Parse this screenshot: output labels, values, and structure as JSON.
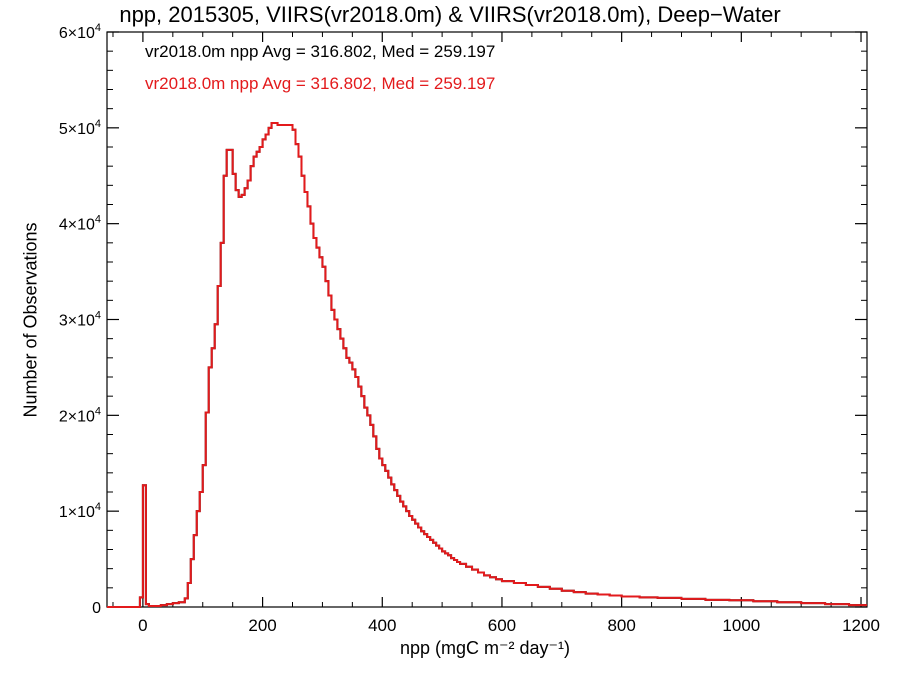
{
  "chart_data": {
    "type": "histogram-step",
    "title": "npp, 2015305, VIIRS(vr2018.0m) & VIIRS(vr2018.0m), Deep−Water",
    "xlabel": "npp (mgC m⁻² day⁻¹)",
    "ylabel": "Number of Observations",
    "xlim": [
      -60,
      1210
    ],
    "ylim": [
      0,
      60000
    ],
    "x_ticks": [
      0,
      200,
      400,
      600,
      800,
      1000,
      1200
    ],
    "x_tick_labels": [
      "0",
      "200",
      "400",
      "600",
      "800",
      "1000",
      "1200"
    ],
    "y_ticks": [
      0,
      10000,
      20000,
      30000,
      40000,
      50000,
      60000
    ],
    "y_tick_labels": [
      {
        "mantissa": "0",
        "exp": ""
      },
      {
        "mantissa": "1×10",
        "exp": "4"
      },
      {
        "mantissa": "2×10",
        "exp": "4"
      },
      {
        "mantissa": "3×10",
        "exp": "4"
      },
      {
        "mantissa": "4×10",
        "exp": "4"
      },
      {
        "mantissa": "5×10",
        "exp": "4"
      },
      {
        "mantissa": "6×10",
        "exp": "4"
      }
    ],
    "grid": false,
    "legend_position": "top-left",
    "legend": [
      {
        "text": "vr2018.0m npp Avg = 316.802, Med = 259.197",
        "color": "#000000"
      },
      {
        "text": "vr2018.0m npp Avg = 316.802, Med = 259.197",
        "color": "#e31a1c"
      }
    ],
    "series": [
      {
        "color": "#e31a1c",
        "bins": [
          [
            -60,
            0
          ],
          [
            -5,
            1000
          ],
          [
            0,
            12700
          ],
          [
            5,
            300
          ],
          [
            10,
            100
          ],
          [
            20,
            100
          ],
          [
            30,
            200
          ],
          [
            40,
            300
          ],
          [
            50,
            400
          ],
          [
            60,
            500
          ],
          [
            70,
            900
          ],
          [
            75,
            2500
          ],
          [
            80,
            5000
          ],
          [
            85,
            7500
          ],
          [
            90,
            10000
          ],
          [
            95,
            12000
          ],
          [
            100,
            14800
          ],
          [
            105,
            20300
          ],
          [
            110,
            25000
          ],
          [
            115,
            27000
          ],
          [
            120,
            29500
          ],
          [
            125,
            33500
          ],
          [
            130,
            38000
          ],
          [
            135,
            45000
          ],
          [
            140,
            47700
          ],
          [
            150,
            45200
          ],
          [
            155,
            43500
          ],
          [
            160,
            42800
          ],
          [
            165,
            43000
          ],
          [
            170,
            43700
          ],
          [
            175,
            44500
          ],
          [
            180,
            46000
          ],
          [
            185,
            47000
          ],
          [
            190,
            47500
          ],
          [
            195,
            48000
          ],
          [
            200,
            48800
          ],
          [
            205,
            49300
          ],
          [
            210,
            50000
          ],
          [
            215,
            50500
          ],
          [
            220,
            50500
          ],
          [
            225,
            50300
          ],
          [
            250,
            49800
          ],
          [
            255,
            48300
          ],
          [
            260,
            47000
          ],
          [
            265,
            45000
          ],
          [
            270,
            43300
          ],
          [
            275,
            41800
          ],
          [
            280,
            40000
          ],
          [
            285,
            38500
          ],
          [
            290,
            37500
          ],
          [
            295,
            36500
          ],
          [
            300,
            35500
          ],
          [
            305,
            34000
          ],
          [
            310,
            32500
          ],
          [
            315,
            31000
          ],
          [
            320,
            30000
          ],
          [
            325,
            29000
          ],
          [
            330,
            28000
          ],
          [
            335,
            27000
          ],
          [
            340,
            26000
          ],
          [
            345,
            25500
          ],
          [
            350,
            24800
          ],
          [
            355,
            24000
          ],
          [
            360,
            23000
          ],
          [
            365,
            22000
          ],
          [
            370,
            20800
          ],
          [
            375,
            20000
          ],
          [
            380,
            19000
          ],
          [
            385,
            17800
          ],
          [
            390,
            16500
          ],
          [
            395,
            15500
          ],
          [
            400,
            14800
          ],
          [
            405,
            14200
          ],
          [
            410,
            13500
          ],
          [
            415,
            12800
          ],
          [
            420,
            12200
          ],
          [
            425,
            11600
          ],
          [
            430,
            11000
          ],
          [
            435,
            10500
          ],
          [
            440,
            10000
          ],
          [
            445,
            9500
          ],
          [
            450,
            9100
          ],
          [
            455,
            8700
          ],
          [
            460,
            8300
          ],
          [
            465,
            7900
          ],
          [
            470,
            7600
          ],
          [
            475,
            7300
          ],
          [
            480,
            7000
          ],
          [
            485,
            6700
          ],
          [
            490,
            6400
          ],
          [
            495,
            6100
          ],
          [
            500,
            5800
          ],
          [
            505,
            5600
          ],
          [
            510,
            5400
          ],
          [
            515,
            5100
          ],
          [
            520,
            4900
          ],
          [
            525,
            4700
          ],
          [
            530,
            4500
          ],
          [
            540,
            4200
          ],
          [
            550,
            3900
          ],
          [
            560,
            3600
          ],
          [
            570,
            3300
          ],
          [
            580,
            3100
          ],
          [
            590,
            2900
          ],
          [
            600,
            2700
          ],
          [
            620,
            2500
          ],
          [
            640,
            2300
          ],
          [
            660,
            2100
          ],
          [
            680,
            1900
          ],
          [
            700,
            1700
          ],
          [
            720,
            1550
          ],
          [
            740,
            1400
          ],
          [
            760,
            1300
          ],
          [
            780,
            1200
          ],
          [
            800,
            1100
          ],
          [
            830,
            1000
          ],
          [
            860,
            950
          ],
          [
            900,
            850
          ],
          [
            940,
            750
          ],
          [
            980,
            700
          ],
          [
            1020,
            600
          ],
          [
            1060,
            500
          ],
          [
            1100,
            400
          ],
          [
            1140,
            300
          ],
          [
            1180,
            200
          ],
          [
            1210,
            200
          ]
        ]
      }
    ]
  }
}
